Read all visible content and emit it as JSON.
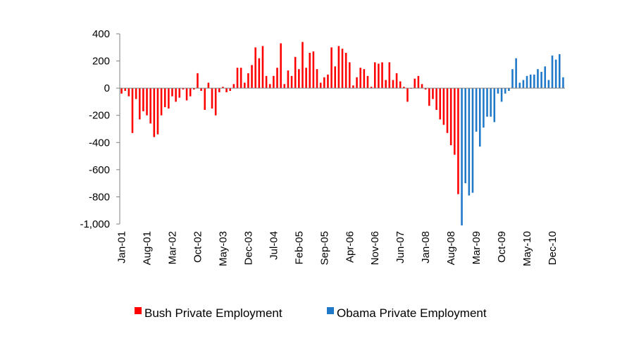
{
  "chart_data": {
    "type": "bar",
    "title": "",
    "xlabel": "",
    "ylabel": "",
    "ylim": [
      -1000,
      400
    ],
    "yticks": [
      "400",
      "200",
      "0",
      "-200",
      "-400",
      "-600",
      "-800",
      "-1,000"
    ],
    "ytick_values": [
      400,
      200,
      0,
      -200,
      -400,
      -600,
      -800,
      -1000
    ],
    "xtick_labels": [
      "Jan-01",
      "Aug-01",
      "Mar-02",
      "Oct-02",
      "May-03",
      "Dec-03",
      "Jul-04",
      "Feb-05",
      "Sep-05",
      "Apr-06",
      "Nov-06",
      "Jun-07",
      "Jan-08",
      "Aug-08",
      "Mar-09",
      "Oct-09",
      "May-10",
      "Dec-10"
    ],
    "xtick_month_index": [
      0,
      7,
      14,
      21,
      28,
      35,
      42,
      49,
      56,
      63,
      70,
      77,
      84,
      91,
      98,
      105,
      112,
      119
    ],
    "grid": false,
    "legend_position": "bottom",
    "colors": {
      "bush": "#ff0000",
      "obama": "#1f78c8"
    },
    "series": [
      {
        "name": "Bush Private Employment",
        "start_month": "Jan-01",
        "values": [
          -40,
          -20,
          -60,
          -330,
          -80,
          -230,
          -170,
          -200,
          -260,
          -360,
          -340,
          -200,
          -140,
          -150,
          -60,
          -100,
          -70,
          -10,
          -90,
          -60,
          -10,
          110,
          -20,
          -160,
          40,
          -150,
          -200,
          -30,
          10,
          -30,
          -20,
          30,
          150,
          150,
          40,
          110,
          170,
          300,
          220,
          310,
          90,
          30,
          90,
          150,
          330,
          30,
          130,
          90,
          230,
          140,
          340,
          150,
          260,
          270,
          140,
          40,
          80,
          100,
          300,
          160,
          310,
          290,
          260,
          190,
          20,
          80,
          150,
          140,
          90,
          10,
          190,
          180,
          190,
          60,
          190,
          60,
          110,
          50,
          10,
          -100,
          0,
          70,
          90,
          30,
          -10,
          -130,
          -80,
          -160,
          -230,
          -270,
          -330,
          -420,
          -490,
          -780
        ],
        "values_description": "monthly change in private employment (thousands)"
      },
      {
        "name": "Obama Private Employment",
        "start_month": "Feb-09",
        "values": [
          -1010,
          -700,
          -790,
          -770,
          -320,
          -430,
          -290,
          -210,
          -210,
          -250,
          -40,
          -100,
          -40,
          -20,
          140,
          220,
          40,
          60,
          90,
          100,
          100,
          140,
          120,
          160,
          60,
          240,
          210,
          250,
          80
        ]
      }
    ]
  }
}
